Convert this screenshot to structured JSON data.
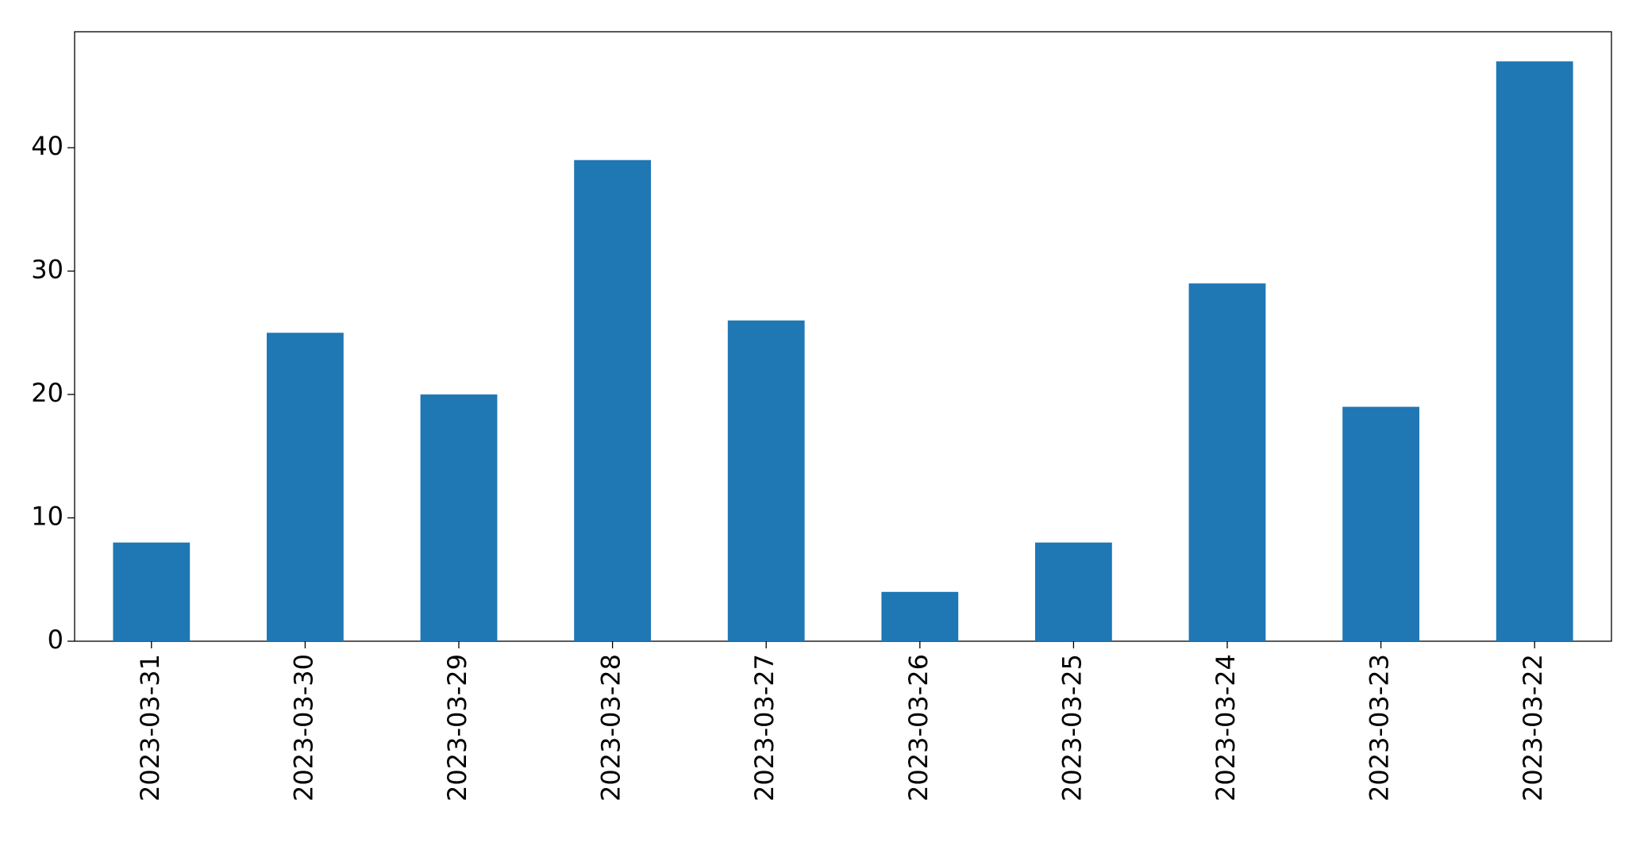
{
  "chart_data": {
    "type": "bar",
    "categories": [
      "2023-03-31",
      "2023-03-30",
      "2023-03-29",
      "2023-03-28",
      "2023-03-27",
      "2023-03-26",
      "2023-03-25",
      "2023-03-24",
      "2023-03-23",
      "2023-03-22"
    ],
    "values": [
      8,
      25,
      20,
      39,
      26,
      4,
      8,
      29,
      19,
      47
    ],
    "color": "#1f77b4",
    "ylim": [
      0,
      49.4
    ],
    "yticks": [
      0,
      10,
      20,
      30,
      40
    ],
    "grid": false
  }
}
